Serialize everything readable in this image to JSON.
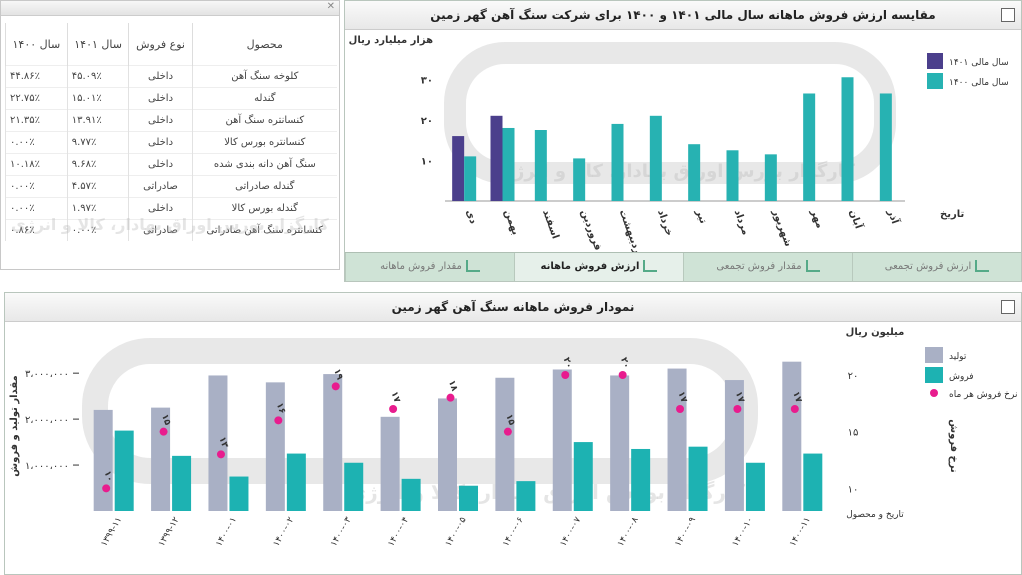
{
  "top_left": {
    "close_glyph": "✕",
    "headers": [
      "محصول",
      "نوع فروش",
      "سال ۱۴۰۱",
      "سال ۱۴۰۰"
    ],
    "rows": [
      [
        "کلوخه سنگ آهن",
        "داخلی",
        "۴۵.۰۹٪",
        "۴۴.۸۶٪"
      ],
      [
        "گندله",
        "داخلی",
        "۱۵.۰۱٪",
        "۲۲.۷۵٪"
      ],
      [
        "کنسانتره سنگ آهن",
        "داخلی",
        "۱۳.۹۱٪",
        "۲۱.۳۵٪"
      ],
      [
        "کنسانتره بورس کالا",
        "داخلی",
        "۹.۷۷٪",
        "۰.۰۰٪"
      ],
      [
        "سنگ آهن دانه بندی شده",
        "داخلی",
        "۹.۶۸٪",
        "۱۰.۱۸٪"
      ],
      [
        "گندله صادراتی",
        "صادراتی",
        "۴.۵۷٪",
        "۰.۰۰٪"
      ],
      [
        "گندله بورس کالا",
        "داخلی",
        "۱.۹۷٪",
        "۰.۰۰٪"
      ],
      [
        "کنسانتره سنگ آهن صادراتی",
        "صادراتی",
        "۰.۰۰٪",
        "۰.۸۶٪"
      ]
    ],
    "watermark": "کارگزار بورس اوراق بهادار، کالا و انرژی"
  },
  "top_right": {
    "title": "مقایسه ارزش فروش ماهانه سال مالی ۱۴۰۱ و ۱۴۰۰ برای شرکت سنگ آهن گهر زمین",
    "tabs": [
      "مقدار فروش ماهانه",
      "ارزش فروش ماهانه",
      "مقدار فروش تجمعی",
      "ارزش فروش تجمعی"
    ],
    "active_tab": 1
  },
  "bottom": {
    "title": "نمودار فروش ماهانه سنگ آهن گهر زمین"
  },
  "chart_data": [
    {
      "type": "bar",
      "title": "مقایسه ارزش فروش ماهانه سال مالی ۱۴۰۱ و ۱۴۰۰ برای شرکت سنگ آهن گهر زمین",
      "ylabel": "هزار میلیارد ریال",
      "xlabel": "تاریخ",
      "ylim": [
        0,
        35
      ],
      "yticks": [
        10,
        20,
        30
      ],
      "ytick_labels": [
        "۱۰",
        "۲۰",
        "۳۰"
      ],
      "grid": false,
      "legend_position": "top-right",
      "categories": [
        "دی",
        "بهمن",
        "اسفند",
        "فروردین",
        "اردیبهشت",
        "خرداد",
        "تیر",
        "مرداد",
        "شهریور",
        "مهر",
        "آبان",
        "آذر"
      ],
      "series": [
        {
          "name": "سال مالی ۱۴۰۱",
          "color": "#4b3f8c",
          "values": [
            16,
            21,
            null,
            null,
            null,
            null,
            null,
            null,
            null,
            null,
            null,
            null
          ]
        },
        {
          "name": "سال مالی ۱۴۰۰",
          "color": "#27b2b2",
          "values": [
            11,
            18,
            17.5,
            10.5,
            19,
            21,
            14,
            12.5,
            11.5,
            26.5,
            30.5,
            26.5
          ]
        }
      ]
    },
    {
      "type": "bar",
      "title": "نمودار فروش ماهانه سنگ آهن گهر زمین",
      "ylabel": "مقدار تولید و فروش",
      "y2label": "نرخ فروش",
      "y2_unit": "میلیون ریال",
      "xlabel": "تاریخ و محصول",
      "ylim": [
        0,
        3700000
      ],
      "yticks": [
        1000000,
        2000000,
        3000000
      ],
      "ytick_labels": [
        "۱،۰۰۰،۰۰۰",
        "۲،۰۰۰،۰۰۰",
        "۳،۰۰۰،۰۰۰"
      ],
      "y2lim": [
        8,
        23
      ],
      "y2ticks": [
        10,
        15,
        20
      ],
      "y2tick_labels": [
        "۱۰",
        "۱۵",
        "۲۰"
      ],
      "legend_position": "top-right",
      "categories": [
        "۱۳۹۹-۱۱",
        "۱۳۹۹-۱۲",
        "۱۴۰۰-۰۱",
        "۱۴۰۰-۰۲",
        "۱۴۰۰-۰۳",
        "۱۴۰۰-۰۴",
        "۱۴۰۰-۰۵",
        "۱۴۰۰-۰۶",
        "۱۴۰۰-۰۷",
        "۱۴۰۰-۰۸",
        "۱۴۰۰-۰۹",
        "۱۴۰۰-۱۰",
        "۱۴۰۰-۱۱"
      ],
      "series": [
        {
          "name": "تولید",
          "color": "#a9b0c5",
          "type": "bar",
          "values": [
            2200000,
            2250000,
            2950000,
            2800000,
            2980000,
            2050000,
            2450000,
            2900000,
            3080000,
            2950000,
            3100000,
            2850000,
            3250000
          ]
        },
        {
          "name": "فروش",
          "color": "#1db2b2",
          "type": "bar",
          "values": [
            1750000,
            1200000,
            750000,
            1250000,
            1050000,
            700000,
            550000,
            650000,
            1500000,
            1350000,
            1400000,
            1050000,
            1250000
          ]
        },
        {
          "name": "نرخ فروش هر ماه",
          "color": "#e81c8e",
          "type": "scatter",
          "axis": "y2",
          "values": [
            10,
            15,
            13,
            16,
            19,
            17,
            18,
            15,
            20,
            20,
            17,
            17,
            17
          ],
          "labels": [
            "۱۰",
            "۱۵",
            "۱۳",
            "۱۶",
            "۱۹",
            "۱۷",
            "۱۸",
            "۱۵",
            "۲۰",
            "۲۰",
            "۱۷",
            "۱۷",
            "۱۷"
          ]
        }
      ]
    }
  ]
}
